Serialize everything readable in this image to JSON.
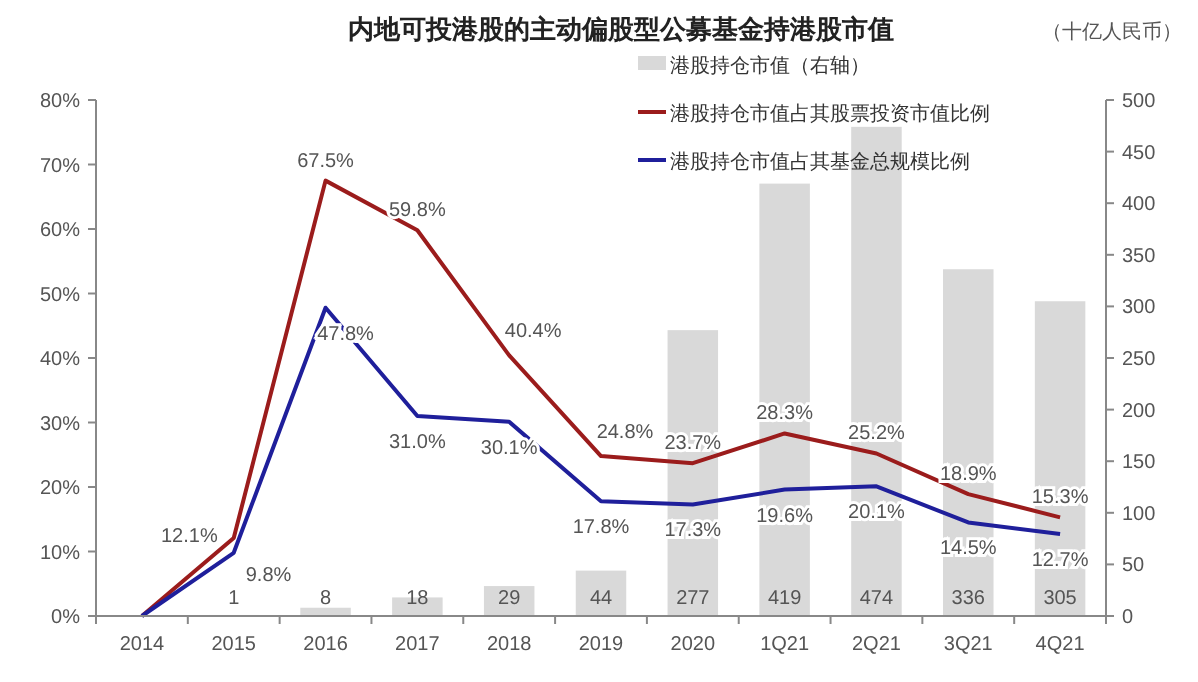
{
  "chart_data": {
    "type": "bar",
    "title": "内地可投港股的主动偏股型公募基金持港股市值",
    "annotations": [
      "（十亿人民币）"
    ],
    "categories": [
      "2014",
      "2015",
      "2016",
      "2017",
      "2018",
      "2019",
      "2020",
      "1Q21",
      "2Q21",
      "3Q21",
      "4Q21"
    ],
    "series": [
      {
        "name": "港股持仓市值（右轴）",
        "axis": "y2",
        "color": "#d9d9d9",
        "values": [
          null,
          1,
          8,
          18,
          29,
          44,
          277,
          419,
          474,
          336,
          305
        ],
        "value_labels": [
          null,
          "1",
          "8",
          "18",
          "29",
          "44",
          "277",
          "419",
          "474",
          "336",
          "305"
        ]
      },
      {
        "name": "港股持仓市值占其股票投资市值比例",
        "type": "line",
        "color": "#9b1c1c",
        "values": [
          0,
          12.1,
          67.5,
          59.8,
          40.4,
          24.8,
          23.7,
          28.3,
          25.2,
          18.9,
          15.3
        ],
        "value_labels": [
          null,
          "12.1%",
          "67.5%",
          "59.8%",
          "40.4%",
          "24.8%",
          "23.7%",
          "28.3%",
          "25.2%",
          "18.9%",
          "15.3%"
        ]
      },
      {
        "name": "港股持仓市值占其基金总规模比例",
        "type": "line",
        "color": "#1f1f9b",
        "values": [
          0,
          9.8,
          47.8,
          31.0,
          30.1,
          17.8,
          17.3,
          19.6,
          20.1,
          14.5,
          12.7
        ],
        "value_labels": [
          null,
          "9.8%",
          "47.8%",
          "31.0%",
          "30.1%",
          "17.8%",
          "17.3%",
          "19.6%",
          "20.1%",
          "14.5%",
          "12.7%"
        ]
      }
    ],
    "ylim": [
      0,
      80
    ],
    "yticks": [
      {
        "value": 0,
        "label": "0%"
      },
      {
        "value": 10,
        "label": "10%"
      },
      {
        "value": 20,
        "label": "20%"
      },
      {
        "value": 30,
        "label": "30%"
      },
      {
        "value": 40,
        "label": "40%"
      },
      {
        "value": 50,
        "label": "50%"
      },
      {
        "value": 60,
        "label": "60%"
      },
      {
        "value": 70,
        "label": "70%"
      },
      {
        "value": 80,
        "label": "80%"
      }
    ],
    "y2lim": [
      0,
      500
    ],
    "y2ticks": [
      0,
      50,
      100,
      150,
      200,
      250,
      300,
      350,
      400,
      450,
      500
    ],
    "legend": "top",
    "grid": false
  }
}
